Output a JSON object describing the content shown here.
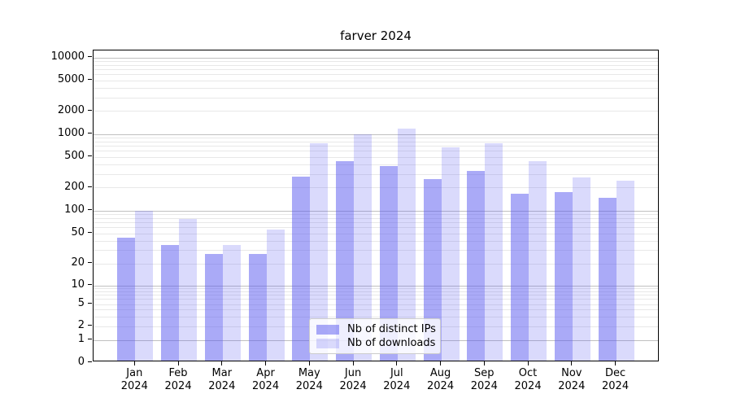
{
  "title": "farver 2024",
  "chart_data": {
    "type": "bar",
    "title": "farver 2024",
    "categories": [
      "Jan 2024",
      "Feb 2024",
      "Mar 2024",
      "Apr 2024",
      "May 2024",
      "Jun 2024",
      "Jul 2024",
      "Aug 2024",
      "Sep 2024",
      "Oct 2024",
      "Nov 2024",
      "Dec 2024"
    ],
    "series": [
      {
        "name": "Nb of distinct IPs",
        "color": "#5555f0",
        "alpha": 0.5,
        "values": [
          43,
          34,
          26,
          26,
          272,
          427,
          368,
          250,
          320,
          162,
          168,
          143
        ]
      },
      {
        "name": "Nb of downloads",
        "color": "#5555f0",
        "alpha": 0.22,
        "values": [
          97,
          76,
          34,
          55,
          740,
          955,
          1150,
          650,
          740,
          428,
          262,
          240
        ]
      }
    ],
    "xlabel": "",
    "ylabel": "",
    "yscale": "log-like (compressed below 10, linear 0-1)",
    "ylim": [
      0,
      13000
    ],
    "yticks": [
      0,
      1,
      2,
      5,
      10,
      20,
      50,
      100,
      200,
      500,
      1000,
      2000,
      5000,
      10000
    ],
    "grid": true,
    "legend_position": "lower center inside plot"
  },
  "legend": {
    "items": [
      {
        "label": "Nb of distinct IPs"
      },
      {
        "label": "Nb of downloads"
      }
    ]
  },
  "colors": {
    "bar_base": "#5555f0",
    "grid_major": "#c0c0c0",
    "grid_minor": "#e8e8e8",
    "spine": "#000000",
    "legend_border": "#cccccc"
  }
}
